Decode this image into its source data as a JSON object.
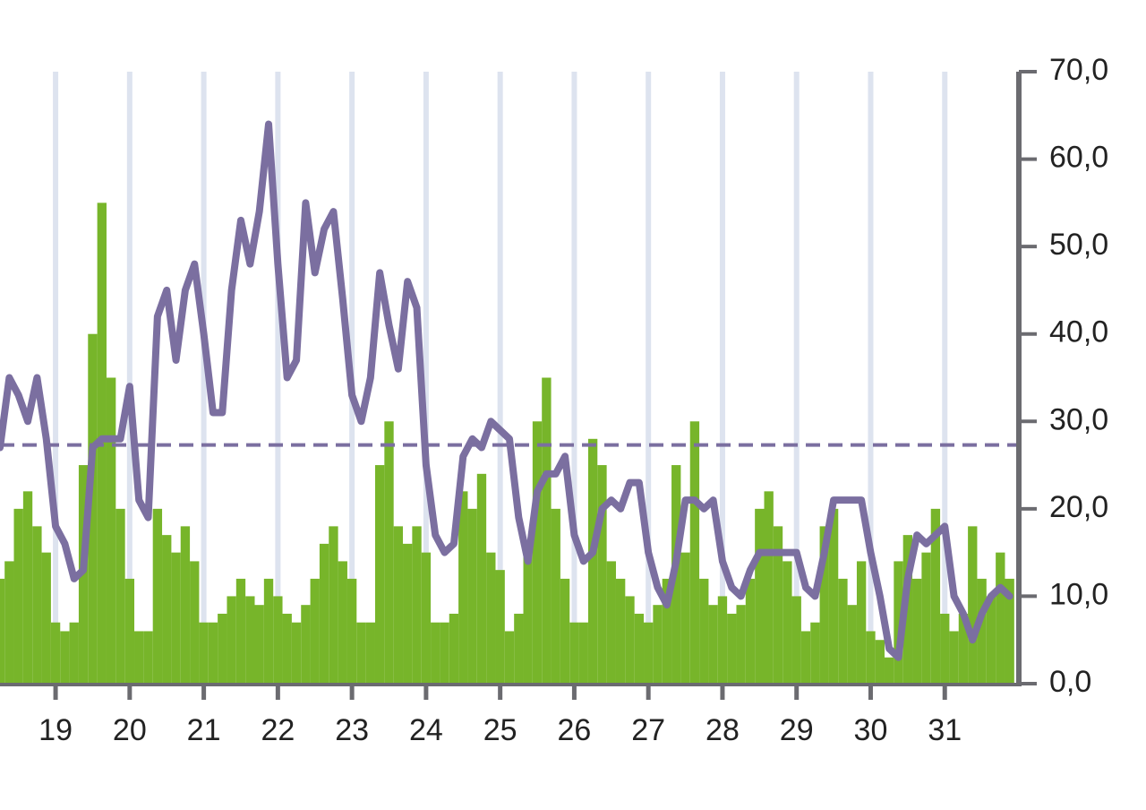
{
  "chart_data": {
    "type": "bar",
    "x": [
      18.25,
      18.375,
      18.5,
      18.625,
      18.75,
      18.875,
      19,
      19.125,
      19.25,
      19.375,
      19.5,
      19.625,
      19.75,
      19.875,
      20,
      20.125,
      20.25,
      20.375,
      20.5,
      20.625,
      20.75,
      20.875,
      21,
      21.125,
      21.25,
      21.375,
      21.5,
      21.625,
      21.75,
      21.875,
      22,
      22.125,
      22.25,
      22.375,
      22.5,
      22.625,
      22.75,
      22.875,
      23,
      23.125,
      23.25,
      23.375,
      23.5,
      23.625,
      23.75,
      23.875,
      24,
      24.125,
      24.25,
      24.375,
      24.5,
      24.625,
      24.75,
      24.875,
      25,
      25.125,
      25.25,
      25.375,
      25.5,
      25.625,
      25.75,
      25.875,
      26,
      26.125,
      26.25,
      26.375,
      26.5,
      26.625,
      26.75,
      26.875,
      27,
      27.125,
      27.25,
      27.375,
      27.5,
      27.625,
      27.75,
      27.875,
      28,
      28.125,
      28.25,
      28.375,
      28.5,
      28.625,
      28.75,
      28.875,
      29,
      29.125,
      29.25,
      29.375,
      29.5,
      29.625,
      29.75,
      29.875,
      30,
      30.125,
      30.25,
      30.375,
      30.5,
      30.625,
      30.75,
      30.875,
      31,
      31.125,
      31.25,
      31.375,
      31.5,
      31.625,
      31.75,
      31.875
    ],
    "series": [
      {
        "type": "bar",
        "color": "#77b52a",
        "values": [
          12,
          14,
          20,
          22,
          18,
          15,
          7,
          6,
          7,
          25,
          40,
          55,
          35,
          20,
          12,
          6,
          6,
          20,
          17,
          15,
          18,
          14,
          7,
          7,
          8,
          10,
          12,
          10,
          9,
          12,
          10,
          8,
          7,
          9,
          12,
          16,
          18,
          14,
          12,
          7,
          7,
          25,
          30,
          18,
          16,
          18,
          15,
          7,
          7,
          8,
          22,
          20,
          24,
          15,
          13,
          6,
          8,
          15,
          30,
          35,
          20,
          12,
          7,
          7,
          28,
          25,
          14,
          12,
          10,
          8,
          7,
          9,
          12,
          25,
          15,
          30,
          12,
          9,
          10,
          8,
          9,
          12,
          20,
          22,
          18,
          14,
          10,
          6,
          7,
          18,
          20,
          12,
          9,
          14,
          6,
          5,
          3,
          14,
          17,
          12,
          15,
          20,
          8,
          6,
          8,
          18,
          12,
          10,
          15,
          12
        ]
      },
      {
        "type": "line",
        "color": "#7b6fa0",
        "values": [
          27,
          35,
          33,
          30,
          35,
          28,
          18,
          16,
          12,
          13,
          27,
          28,
          28,
          28,
          34,
          21,
          19,
          42,
          45,
          37,
          45,
          48,
          40,
          31,
          31,
          45,
          53,
          48,
          54,
          64,
          48,
          35,
          37,
          55,
          47,
          52,
          54,
          44,
          33,
          30,
          35,
          47,
          41,
          36,
          46,
          43,
          25,
          17,
          15,
          16,
          26,
          28,
          27,
          30,
          29,
          28,
          19,
          14,
          22,
          24,
          24,
          26,
          17,
          14,
          15,
          20,
          21,
          20,
          23,
          23,
          15,
          11,
          9,
          14,
          21,
          21,
          20,
          21,
          14,
          11,
          10,
          13,
          15,
          15,
          15,
          15,
          15,
          11,
          10,
          15,
          21,
          21,
          21,
          21,
          15,
          10,
          4,
          3,
          12,
          17,
          16,
          17,
          18,
          10,
          8,
          5,
          8,
          10,
          11,
          10
        ]
      }
    ],
    "threshold": 27.3,
    "threshold_color": "#7b6fa0",
    "xlim": [
      18.25,
      32
    ],
    "xticks": [
      19,
      20,
      21,
      22,
      23,
      24,
      25,
      26,
      27,
      28,
      29,
      30,
      31
    ],
    "ylim": [
      0,
      70
    ],
    "yticks": [
      {
        "value": 0,
        "label": "0,0"
      },
      {
        "value": 10,
        "label": "10,0"
      },
      {
        "value": 20,
        "label": "20,0"
      },
      {
        "value": 30,
        "label": "30,0"
      },
      {
        "value": 40,
        "label": "40,0"
      },
      {
        "value": 50,
        "label": "50,0"
      },
      {
        "value": 60,
        "label": "60,0"
      },
      {
        "value": 70,
        "label": "70,0"
      }
    ],
    "grid": true,
    "grid_color": "#dde3ef",
    "axis_color": "#6b6b70"
  }
}
